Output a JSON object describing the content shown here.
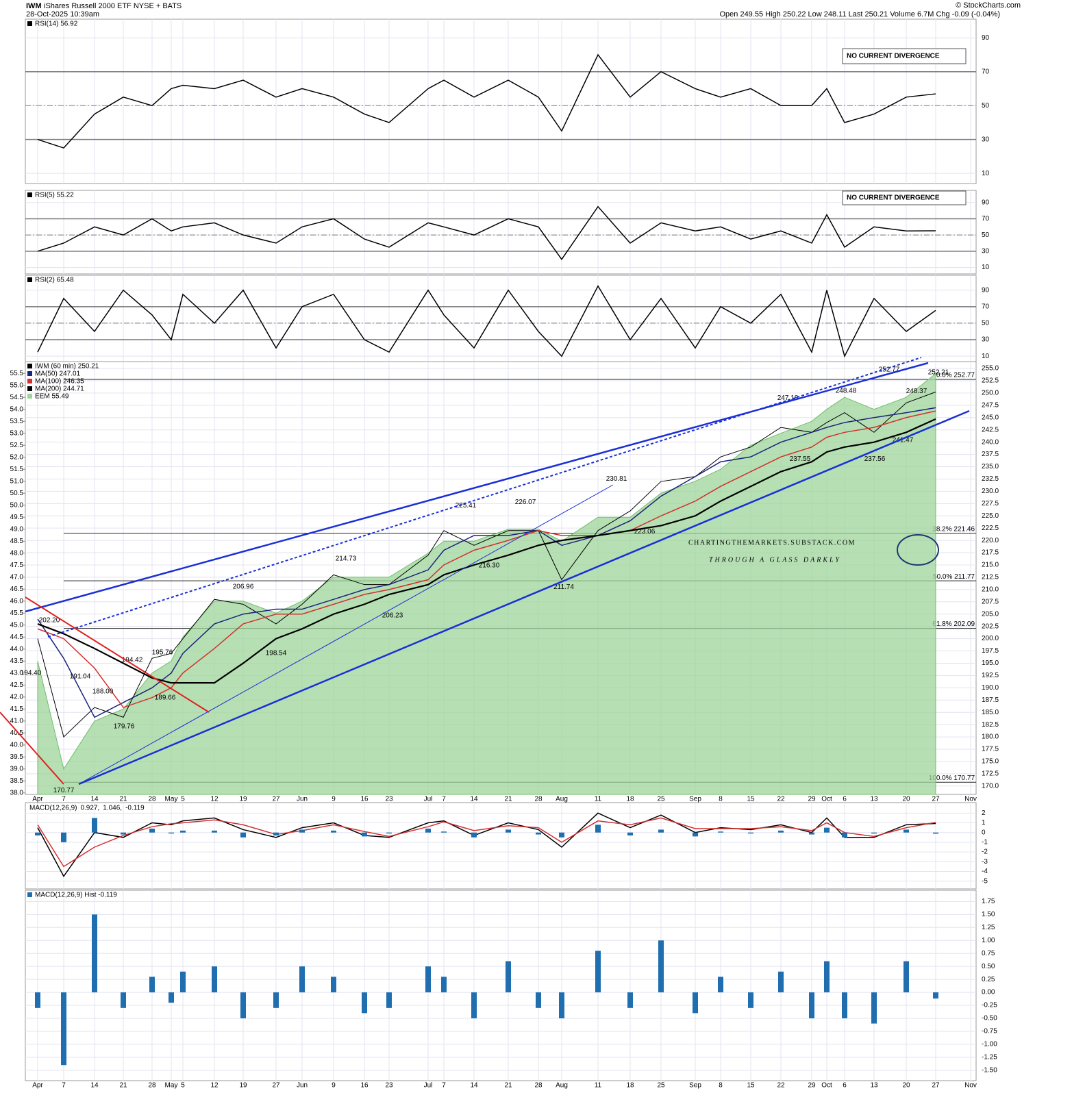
{
  "header": {
    "symbol": "IWM",
    "name": "iShares Russell 2000 ETF  NYSE + BATS",
    "date": "28-Oct-2025 10:39am",
    "quote": "Open 249.55  High 250.22  Low 248.11  Last 250.21  Volume 6.7M  Chg -0.09 (-0.04%)",
    "source": "© StockCharts.com"
  },
  "notes": {
    "divergence_1": "NO CURRENT DIVERGENCE",
    "divergence_2": "NO CURRENT DIVERGENCE",
    "site": "CHARTINGTHEMARKETS.SUBSTACK.COM",
    "tagline": "THROUGH A GLASS DARKLY"
  },
  "chart_data": [
    {
      "type": "line",
      "ylim": [
        4,
        101
      ],
      "yticks": [
        10,
        30,
        50,
        70,
        90
      ],
      "reference_lines": [
        30,
        70
      ],
      "midline": 50,
      "series": [
        {
          "name": "RSI(14) 56.92",
          "color": "#000000",
          "values": [
            30,
            25,
            45,
            55,
            50,
            60,
            62,
            60,
            65,
            55,
            60,
            55,
            45,
            40,
            60,
            65,
            55,
            65,
            55,
            35,
            80,
            55,
            70,
            60,
            55,
            60,
            50,
            50,
            60,
            40,
            45,
            55,
            56.92,
            null
          ]
        }
      ]
    },
    {
      "type": "line",
      "ylim": [
        2,
        105
      ],
      "yticks": [
        10,
        30,
        50,
        70,
        90
      ],
      "reference_lines": [
        30,
        70
      ],
      "midline": 50,
      "series": [
        {
          "name": "RSI(5) 55.22",
          "color": "#000000",
          "values": [
            30,
            40,
            60,
            50,
            70,
            55,
            60,
            65,
            50,
            40,
            60,
            70,
            45,
            35,
            65,
            60,
            50,
            70,
            60,
            20,
            85,
            40,
            65,
            55,
            60,
            45,
            55,
            40,
            75,
            35,
            60,
            55,
            55.22,
            null
          ]
        }
      ]
    },
    {
      "type": "line",
      "ylim": [
        3.5,
        108
      ],
      "yticks": [
        10,
        30,
        50,
        70,
        90
      ],
      "reference_lines": [
        30,
        70
      ],
      "midline": 50,
      "series": [
        {
          "name": "RSI(2) 65.48",
          "color": "#000000",
          "values": [
            15,
            80,
            40,
            90,
            60,
            30,
            85,
            50,
            90,
            20,
            70,
            85,
            30,
            15,
            90,
            60,
            20,
            90,
            40,
            10,
            95,
            30,
            80,
            20,
            70,
            50,
            85,
            15,
            90,
            10,
            80,
            40,
            65.48,
            null
          ]
        }
      ]
    },
    {
      "type": "line",
      "categories": [
        "Apr",
        "7",
        "14",
        "21",
        "28",
        "May",
        "5",
        "12",
        "19",
        "27",
        "Jun",
        "9",
        "16",
        "23",
        "Jul",
        "7",
        "14",
        "21",
        "28",
        "Aug",
        "11",
        "18",
        "25",
        "Sep",
        "8",
        "15",
        "22",
        "29",
        "Oct",
        "6",
        "13",
        "20",
        "27",
        "Nov"
      ],
      "ylim": [
        168.3,
        256.4
      ],
      "yticks": [
        {
          "value": 170,
          "label": "170.0"
        },
        172.5,
        {
          "value": 175,
          "label": "175.0"
        },
        177.5,
        {
          "value": 180,
          "label": "180.0"
        },
        182.5,
        {
          "value": 185,
          "label": "185.0"
        },
        187.5,
        {
          "value": 190,
          "label": "190.0"
        },
        192.5,
        {
          "value": 195,
          "label": "195.0"
        },
        197.5,
        {
          "value": 200,
          "label": "200.0"
        },
        202.5,
        {
          "value": 205,
          "label": "205.0"
        },
        207.5,
        {
          "value": 210,
          "label": "210.0"
        },
        212.5,
        {
          "value": 215,
          "label": "215.0"
        },
        217.5,
        {
          "value": 220,
          "label": "220.0"
        },
        222.5,
        {
          "value": 225,
          "label": "225.0"
        },
        227.5,
        {
          "value": 230,
          "label": "230.0"
        },
        232.5,
        {
          "value": 235,
          "label": "235.0"
        },
        237.5,
        {
          "value": 240,
          "label": "240.0"
        },
        242.5,
        {
          "value": 245,
          "label": "245.0"
        },
        247.5,
        {
          "value": 250,
          "label": "250.0"
        },
        252.5,
        {
          "value": 255,
          "label": "255.0"
        }
      ],
      "y2lim": [
        37.94,
        55.99
      ],
      "y2ticks": [
        {
          "value": 38,
          "label": "38.0"
        },
        38.5,
        {
          "value": 39,
          "label": "39.0"
        },
        39.5,
        {
          "value": 40,
          "label": "40.0"
        },
        40.5,
        {
          "value": 41,
          "label": "41.0"
        },
        41.5,
        {
          "value": 42,
          "label": "42.0"
        },
        42.5,
        {
          "value": 43,
          "label": "43.0"
        },
        43.5,
        {
          "value": 44,
          "label": "44.0"
        },
        44.5,
        {
          "value": 45,
          "label": "45.0"
        },
        45.5,
        {
          "value": 46,
          "label": "46.0"
        },
        46.5,
        {
          "value": 47,
          "label": "47.0"
        },
        47.5,
        {
          "value": 48,
          "label": "48.0"
        },
        48.5,
        {
          "value": 49,
          "label": "49.0"
        },
        49.5,
        {
          "value": 50,
          "label": "50.0"
        },
        50.5,
        {
          "value": 51,
          "label": "51.0"
        },
        51.5,
        {
          "value": 52,
          "label": "52.0"
        },
        52.5,
        {
          "value": 53,
          "label": "53.0"
        },
        53.5,
        {
          "value": 54,
          "label": "54.0"
        },
        54.5,
        {
          "value": 55,
          "label": "55.0"
        },
        55.5
      ],
      "series": [
        {
          "name": "IWM (60 min) 250.21",
          "color": "#000000",
          "values": [
            200,
            180,
            186,
            184,
            196,
            197,
            200,
            208,
            207,
            203,
            207,
            213,
            211,
            211,
            217,
            222,
            219,
            222,
            222,
            212,
            222,
            226,
            232,
            233,
            237,
            239,
            243,
            242,
            244,
            246,
            242,
            248,
            250.21,
            null
          ]
        },
        {
          "name": "MA(50) 247.01",
          "color": "#1a237e",
          "values": [
            204,
            196,
            184,
            187,
            190,
            193,
            197,
            203,
            205,
            206,
            206,
            208,
            210,
            211,
            214,
            218,
            221,
            221,
            222,
            219,
            221,
            224,
            229,
            233,
            236,
            237,
            240,
            242,
            243,
            244,
            245,
            246,
            247.01,
            null
          ]
        },
        {
          "name": "MA(100) 246.35",
          "color": "#d32f2f",
          "values": [
            202,
            200,
            194,
            186,
            188,
            190,
            193,
            198,
            203,
            205,
            205,
            207,
            209,
            210,
            212,
            215,
            218,
            220,
            222,
            221,
            221,
            222,
            225,
            228,
            231,
            234,
            237,
            239,
            241,
            242,
            243,
            245,
            246.35,
            null
          ]
        },
        {
          "name": "MA(200) 244.71",
          "color": "#000000",
          "values": [
            203,
            201,
            198,
            195,
            192,
            191,
            191,
            191,
            195,
            200,
            202,
            205,
            207,
            209,
            211,
            213,
            215,
            217,
            219,
            220,
            221,
            222,
            223,
            225,
            228,
            231,
            234,
            236,
            238,
            239,
            240,
            242,
            244.71,
            null
          ]
        },
        {
          "name": "EEM 55.49",
          "color": "#9ed49a",
          "style": "area",
          "axis": "y2",
          "values": [
            43.5,
            39,
            41,
            41.5,
            43,
            43.5,
            44.5,
            46,
            46,
            45.5,
            46,
            47,
            47,
            47,
            48,
            48.5,
            48.5,
            49,
            49,
            48.5,
            49.5,
            49.5,
            50.5,
            51,
            51.5,
            52.5,
            53,
            53.5,
            54,
            54.5,
            54,
            54.5,
            55.49,
            null
          ]
        }
      ],
      "annotations": [
        {
          "value": 202.2,
          "label": "202.20"
        },
        {
          "value": 194.4,
          "label": "194.40"
        },
        {
          "value": 191.04,
          "label": "191.04"
        },
        {
          "value": 188,
          "label": "188.00"
        },
        {
          "value": 179.76,
          "label": "179.76"
        },
        {
          "value": 170.77,
          "label": "170.77"
        },
        {
          "value": 195.76,
          "label": "195.76"
        },
        {
          "value": 194.42,
          "label": "194.42"
        },
        {
          "value": 189.66,
          "label": "189.66"
        },
        {
          "value": 206.96,
          "label": "206.96"
        },
        {
          "value": 198.54,
          "label": "198.54"
        },
        {
          "value": 214.73,
          "label": "214.73"
        },
        {
          "value": 206.23,
          "label": "206.23"
        },
        {
          "value": 225.41,
          "label": "225.41"
        },
        {
          "value": 216.3,
          "label": "216.30"
        },
        {
          "value": 226.07,
          "label": "226.07"
        },
        {
          "value": 230.81,
          "label": "230.81"
        },
        {
          "value": 223.06,
          "label": "223.06"
        },
        {
          "value": 211.74,
          "label": "211.74"
        },
        {
          "value": 247.18,
          "label": "247.18"
        },
        {
          "value": 237.55,
          "label": "237.55"
        },
        {
          "value": 248.48,
          "label": "248.48"
        },
        {
          "value": 252.77,
          "label": "252.77"
        },
        {
          "value": 237.56,
          "label": "237.56"
        },
        {
          "value": 248.37,
          "label": "248.37"
        },
        {
          "value": 241.47,
          "label": "241.47"
        },
        {
          "value": 252.21,
          "label": "252.21"
        }
      ],
      "fib_levels": [
        {
          "value": 252.77,
          "label": "0.0% 252.77"
        },
        {
          "value": 221.46,
          "label": "38.2% 221.46"
        },
        {
          "value": 211.77,
          "label": "50.0% 211.77"
        },
        {
          "value": 202.09,
          "label": "61.8% 202.09"
        },
        {
          "value": 170.77,
          "label": "100.0% 170.77"
        }
      ]
    },
    {
      "type": "line",
      "title": "MACD(12,26,9)",
      "ylim": [
        -5.8,
        3.08
      ],
      "yticks": [
        2,
        1,
        0,
        -1,
        -2,
        -3,
        -4,
        -5
      ],
      "series": [
        {
          "name": "0.927,",
          "color": "#000000",
          "values": [
            0.5,
            -4.5,
            0,
            -0.5,
            1,
            0.8,
            1.2,
            1.5,
            0.3,
            -0.5,
            0.5,
            1,
            -0.3,
            -0.5,
            1,
            1.2,
            -0.3,
            1,
            0.3,
            -1.5,
            2,
            0.5,
            1.8,
            0,
            0.5,
            0.3,
            0.8,
            0,
            1.5,
            -0.5,
            -0.5,
            0.8,
            0.927,
            null
          ]
        },
        {
          "name": "1.046,",
          "color": "#d32f2f",
          "values": [
            0.8,
            -3.5,
            -1.5,
            -0.3,
            0.6,
            0.9,
            1,
            1.3,
            0.8,
            -0.2,
            0.2,
            0.8,
            0.1,
            -0.4,
            0.6,
            1.1,
            0.2,
            0.7,
            0.5,
            -1,
            1.2,
            0.8,
            1.5,
            0.4,
            0.4,
            0.4,
            0.6,
            0.2,
            1,
            0,
            -0.4,
            0.5,
            1.046,
            null
          ]
        },
        {
          "name": "-0.119",
          "color": "#1f6fb0",
          "style": "bar",
          "values": [
            -0.3,
            -1,
            1.5,
            -0.2,
            0.4,
            -0.1,
            0.2,
            0.2,
            -0.5,
            -0.3,
            0.3,
            0.2,
            -0.4,
            -0.1,
            0.4,
            0.1,
            -0.5,
            0.3,
            -0.2,
            -0.5,
            0.8,
            -0.3,
            0.3,
            -0.4,
            0.1,
            -0.1,
            0.2,
            -0.2,
            0.5,
            -0.5,
            -0.1,
            0.3,
            -0.119,
            null
          ]
        }
      ]
    },
    {
      "type": "bar",
      "categories": [
        "Apr",
        "7",
        "14",
        "21",
        "28",
        "May",
        "5",
        "12",
        "19",
        "27",
        "Jun",
        "9",
        "16",
        "23",
        "Jul",
        "7",
        "14",
        "21",
        "28",
        "Aug",
        "11",
        "18",
        "25",
        "Sep",
        "8",
        "15",
        "22",
        "29",
        "Oct",
        "6",
        "13",
        "20",
        "27",
        "Nov"
      ],
      "ylim": [
        -1.7,
        1.966
      ],
      "yticks": [
        1.75,
        {
          "value": 1.5,
          "label": "1.50"
        },
        1.25,
        {
          "value": 1,
          "label": "1.00"
        },
        0.75,
        {
          "value": 0.5,
          "label": "0.50"
        },
        0.25,
        {
          "value": 0,
          "label": "0.00"
        },
        -0.25,
        {
          "value": -0.5,
          "label": "-0.50"
        },
        -0.75,
        {
          "value": -1,
          "label": "-1.00"
        },
        -1.25,
        {
          "value": -1.5,
          "label": "-1.50"
        }
      ],
      "series": [
        {
          "name": "MACD(12,26,9) Hist -0.119",
          "color": "#1f6fb0",
          "style": "bar",
          "values": [
            -0.3,
            -1.4,
            1.5,
            -0.3,
            0.3,
            -0.2,
            0.4,
            0.5,
            -0.5,
            -0.3,
            0.5,
            0.3,
            -0.4,
            -0.3,
            0.5,
            0.3,
            -0.5,
            0.6,
            -0.3,
            -0.5,
            0.8,
            -0.3,
            1,
            -0.4,
            0.3,
            -0.3,
            0.4,
            -0.5,
            0.6,
            -0.5,
            -0.6,
            0.6,
            -0.119,
            null
          ]
        }
      ]
    }
  ]
}
